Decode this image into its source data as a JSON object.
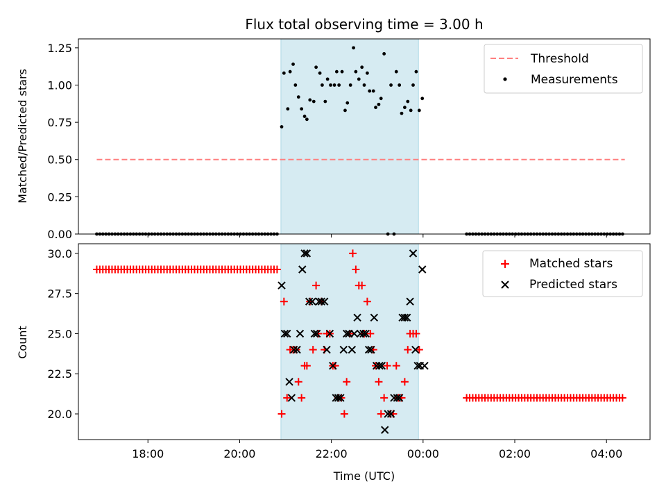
{
  "title": "Flux total observing time = 3.00 h",
  "colors": {
    "threshold": "#ff7f7f",
    "measurement": "#000000",
    "matched": "#ff0000",
    "predicted": "#000000",
    "observing_span": "#add8e6"
  },
  "chart_data": [
    {
      "type": "scatter",
      "panel": "top",
      "title": "Flux total observing time = 3.00 h",
      "xlabel": "",
      "ylabel": "Matched/Predicted stars",
      "xlim": [
        "16:29",
        "04:57"
      ],
      "ylim": [
        0,
        1.31
      ],
      "yticks": [
        0.0,
        0.25,
        0.5,
        0.75,
        1.0,
        1.25
      ],
      "ytick_labels": [
        "0.00",
        "0.25",
        "0.50",
        "0.75",
        "1.00",
        "1.25"
      ],
      "xtick_labels": [
        "18:00",
        "20:00",
        "22:00",
        "00:00",
        "02:00",
        "04:00"
      ],
      "legend_position": "top-right",
      "observing_span": [
        "20:54",
        "23:54"
      ],
      "threshold": {
        "name": "Threshold",
        "y": 0.5,
        "x_range": [
          "16:53",
          "04:24"
        ],
        "style": "dashed"
      },
      "measurements": {
        "name": "Measurements",
        "zero_runs": [
          {
            "start": "16:53",
            "end": "20:51",
            "step_min": 4
          },
          {
            "start": "00:57",
            "end": "04:24",
            "step_min": 4
          }
        ],
        "points": [
          [
            "20:55",
            0.72
          ],
          [
            "20:58",
            1.08
          ],
          [
            "21:03",
            0.84
          ],
          [
            "21:06",
            1.09
          ],
          [
            "21:10",
            1.14
          ],
          [
            "21:13",
            1.0
          ],
          [
            "21:17",
            0.92
          ],
          [
            "21:21",
            0.84
          ],
          [
            "21:25",
            0.79
          ],
          [
            "21:28",
            0.77
          ],
          [
            "21:32",
            0.9
          ],
          [
            "21:37",
            0.89
          ],
          [
            "21:40",
            1.12
          ],
          [
            "21:45",
            1.08
          ],
          [
            "21:48",
            1.0
          ],
          [
            "21:52",
            0.89
          ],
          [
            "21:55",
            1.04
          ],
          [
            "21:59",
            1.0
          ],
          [
            "22:04",
            1.0
          ],
          [
            "22:07",
            1.09
          ],
          [
            "22:10",
            1.0
          ],
          [
            "22:14",
            1.09
          ],
          [
            "22:18",
            0.83
          ],
          [
            "22:21",
            0.88
          ],
          [
            "22:25",
            1.0
          ],
          [
            "22:29",
            1.25
          ],
          [
            "22:32",
            1.09
          ],
          [
            "22:36",
            1.04
          ],
          [
            "22:40",
            1.12
          ],
          [
            "22:43",
            1.0
          ],
          [
            "22:47",
            1.08
          ],
          [
            "22:50",
            0.96
          ],
          [
            "22:55",
            0.96
          ],
          [
            "22:58",
            0.85
          ],
          [
            "23:02",
            0.87
          ],
          [
            "23:05",
            0.91
          ],
          [
            "23:09",
            1.21
          ],
          [
            "23:14",
            0.0
          ],
          [
            "23:18",
            1.0
          ],
          [
            "23:22",
            0.0
          ],
          [
            "23:25",
            1.09
          ],
          [
            "23:29",
            1.0
          ],
          [
            "23:32",
            0.81
          ],
          [
            "23:36",
            0.85
          ],
          [
            "23:40",
            0.89
          ],
          [
            "23:44",
            0.83
          ],
          [
            "23:47",
            1.0
          ],
          [
            "23:51",
            1.09
          ],
          [
            "23:55",
            0.83
          ],
          [
            "23:59",
            0.91
          ]
        ]
      }
    },
    {
      "type": "scatter",
      "panel": "bottom",
      "xlabel": "Time (UTC)",
      "ylabel": "Count",
      "xlim": [
        "16:29",
        "04:57"
      ],
      "ylim": [
        18.4,
        30.6
      ],
      "yticks": [
        20.0,
        22.5,
        25.0,
        27.5,
        30.0
      ],
      "ytick_labels": [
        "20.0",
        "22.5",
        "25.0",
        "27.5",
        "30.0"
      ],
      "xtick_labels": [
        "18:00",
        "20:00",
        "22:00",
        "00:00",
        "02:00",
        "04:00"
      ],
      "legend_position": "top-right",
      "observing_span": [
        "20:54",
        "23:54"
      ],
      "matched": {
        "name": "Matched stars",
        "constant_runs": [
          {
            "start": "16:53",
            "end": "20:51",
            "step_min": 4,
            "value": 29
          },
          {
            "start": "00:57",
            "end": "04:24",
            "step_min": 4,
            "value": 21
          }
        ],
        "points": [
          [
            "20:55",
            20
          ],
          [
            "20:58",
            27
          ],
          [
            "21:02",
            21
          ],
          [
            "21:06",
            24
          ],
          [
            "21:10",
            24
          ],
          [
            "21:14",
            24
          ],
          [
            "21:17",
            22
          ],
          [
            "21:21",
            21
          ],
          [
            "21:25",
            23
          ],
          [
            "21:28",
            23
          ],
          [
            "21:32",
            27
          ],
          [
            "21:36",
            24
          ],
          [
            "21:40",
            28
          ],
          [
            "21:43",
            25
          ],
          [
            "21:47",
            27
          ],
          [
            "21:51",
            24
          ],
          [
            "21:54",
            25
          ],
          [
            "21:58",
            25
          ],
          [
            "22:02",
            23
          ],
          [
            "22:05",
            23
          ],
          [
            "22:09",
            21
          ],
          [
            "22:13",
            21
          ],
          [
            "22:17",
            20
          ],
          [
            "22:20",
            22
          ],
          [
            "22:24",
            25
          ],
          [
            "22:28",
            30
          ],
          [
            "22:32",
            29
          ],
          [
            "22:36",
            28
          ],
          [
            "22:40",
            28
          ],
          [
            "22:43",
            25
          ],
          [
            "22:47",
            27
          ],
          [
            "22:51",
            25
          ],
          [
            "22:55",
            24
          ],
          [
            "22:58",
            23
          ],
          [
            "23:02",
            22
          ],
          [
            "23:05",
            20
          ],
          [
            "23:09",
            21
          ],
          [
            "23:13",
            23
          ],
          [
            "23:17",
            20
          ],
          [
            "23:21",
            20
          ],
          [
            "23:25",
            23
          ],
          [
            "23:28",
            21
          ],
          [
            "23:32",
            21
          ],
          [
            "23:36",
            22
          ],
          [
            "23:40",
            24
          ],
          [
            "23:43",
            25
          ],
          [
            "23:47",
            25
          ],
          [
            "23:51",
            25
          ],
          [
            "23:55",
            24
          ]
        ]
      },
      "predicted": {
        "name": "Predicted stars",
        "points": [
          [
            "20:55",
            28
          ],
          [
            "20:59",
            25
          ],
          [
            "21:02",
            25
          ],
          [
            "21:05",
            22
          ],
          [
            "21:08",
            21
          ],
          [
            "21:11",
            24
          ],
          [
            "21:15",
            24
          ],
          [
            "21:19",
            25
          ],
          [
            "21:22",
            29
          ],
          [
            "21:25",
            30
          ],
          [
            "21:28",
            30
          ],
          [
            "21:31",
            27
          ],
          [
            "21:35",
            27
          ],
          [
            "21:38",
            25
          ],
          [
            "21:41",
            25
          ],
          [
            "21:44",
            27
          ],
          [
            "21:47",
            27
          ],
          [
            "21:51",
            27
          ],
          [
            "21:54",
            24
          ],
          [
            "21:58",
            25
          ],
          [
            "22:02",
            23
          ],
          [
            "22:06",
            21
          ],
          [
            "22:09",
            21
          ],
          [
            "22:12",
            21
          ],
          [
            "22:16",
            24
          ],
          [
            "22:20",
            25
          ],
          [
            "22:23",
            25
          ],
          [
            "22:27",
            24
          ],
          [
            "22:30",
            25
          ],
          [
            "22:34",
            26
          ],
          [
            "22:38",
            25
          ],
          [
            "22:42",
            25
          ],
          [
            "22:45",
            25
          ],
          [
            "22:49",
            24
          ],
          [
            "22:52",
            24
          ],
          [
            "22:56",
            26
          ],
          [
            "22:59",
            23
          ],
          [
            "23:03",
            23
          ],
          [
            "23:06",
            23
          ],
          [
            "23:10",
            19
          ],
          [
            "23:14",
            20
          ],
          [
            "23:18",
            20
          ],
          [
            "23:22",
            21
          ],
          [
            "23:26",
            21
          ],
          [
            "23:29",
            21
          ],
          [
            "23:33",
            26
          ],
          [
            "23:36",
            26
          ],
          [
            "23:39",
            26
          ],
          [
            "23:43",
            27
          ],
          [
            "23:47",
            30
          ],
          [
            "23:50",
            24
          ],
          [
            "23:53",
            23
          ],
          [
            "23:56",
            23
          ],
          [
            "23:59",
            29
          ],
          [
            "00:02",
            23
          ]
        ]
      }
    }
  ]
}
